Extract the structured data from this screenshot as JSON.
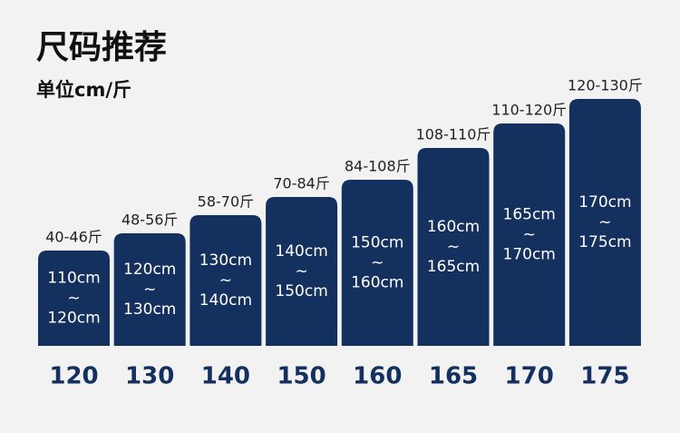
{
  "title": "尺码推荐",
  "unit": "单位cm/斤",
  "sizes": [
    {
      "size": "120",
      "weight": "40-46斤",
      "height_from": "110cm",
      "separator": "~",
      "height_to": "120cm"
    },
    {
      "size": "130",
      "weight": "48-56斤",
      "height_from": "120cm",
      "separator": "~",
      "height_to": "130cm"
    },
    {
      "size": "140",
      "weight": "58-70斤",
      "height_from": "130cm",
      "separator": "~",
      "height_to": "140cm"
    },
    {
      "size": "150",
      "weight": "70-84斤",
      "height_from": "140cm",
      "separator": "~",
      "height_to": "150cm"
    },
    {
      "size": "160",
      "weight": "84-108斤",
      "height_from": "150cm",
      "separator": "~",
      "height_to": "160cm"
    },
    {
      "size": "165",
      "weight": "108-110斤",
      "height_from": "160cm",
      "separator": "~",
      "height_to": "165cm"
    },
    {
      "size": "170",
      "weight": "110-120斤",
      "height_from": "165cm",
      "separator": "~",
      "height_to": "170cm"
    },
    {
      "size": "175",
      "weight": "120-130斤",
      "height_from": "170cm",
      "separator": "~",
      "height_to": "175cm"
    }
  ]
}
